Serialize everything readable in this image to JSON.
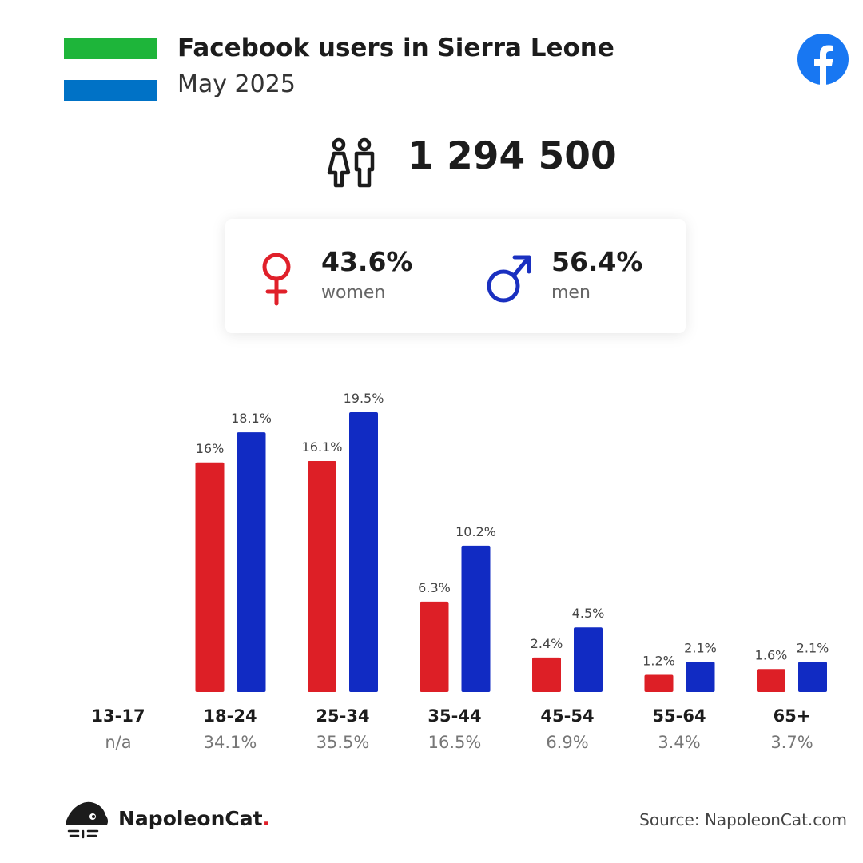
{
  "header": {
    "title": "Facebook users in Sierra Leone",
    "subtitle": "May 2025",
    "flag_colors": [
      "#1eb53a",
      "#ffffff",
      "#0072c6"
    ]
  },
  "total": {
    "value": "1 294 500",
    "icon": "users-icon"
  },
  "gender": {
    "women": {
      "pct": "43.6%",
      "label": "women",
      "icon": "female-icon",
      "color": "#e0202a"
    },
    "men": {
      "pct": "56.4%",
      "label": "men",
      "icon": "male-icon",
      "color": "#1a30c0"
    }
  },
  "chart_data": {
    "type": "bar",
    "categories": [
      "13-17",
      "18-24",
      "25-34",
      "35-44",
      "45-54",
      "55-64",
      "65+"
    ],
    "category_totals": [
      "n/a",
      "34.1%",
      "35.5%",
      "16.5%",
      "6.9%",
      "3.4%",
      "3.7%"
    ],
    "series": [
      {
        "name": "women",
        "color": "#dd1f26",
        "values": [
          null,
          16,
          16.1,
          6.3,
          2.4,
          1.2,
          1.6
        ],
        "labels": [
          "",
          "16%",
          "16.1%",
          "6.3%",
          "2.4%",
          "1.2%",
          "1.6%"
        ]
      },
      {
        "name": "men",
        "color": "#112bc3",
        "values": [
          null,
          18.1,
          19.5,
          10.2,
          4.5,
          2.1,
          2.1
        ],
        "labels": [
          "",
          "18.1%",
          "19.5%",
          "10.2%",
          "4.5%",
          "2.1%",
          "2.1%"
        ]
      }
    ],
    "ylim": [
      0,
      20
    ],
    "grid": false,
    "legend": "none"
  },
  "footer": {
    "brand_name": "NapoleonCat",
    "brand_dot": ".",
    "source": "Source: NapoleonCat.com"
  }
}
